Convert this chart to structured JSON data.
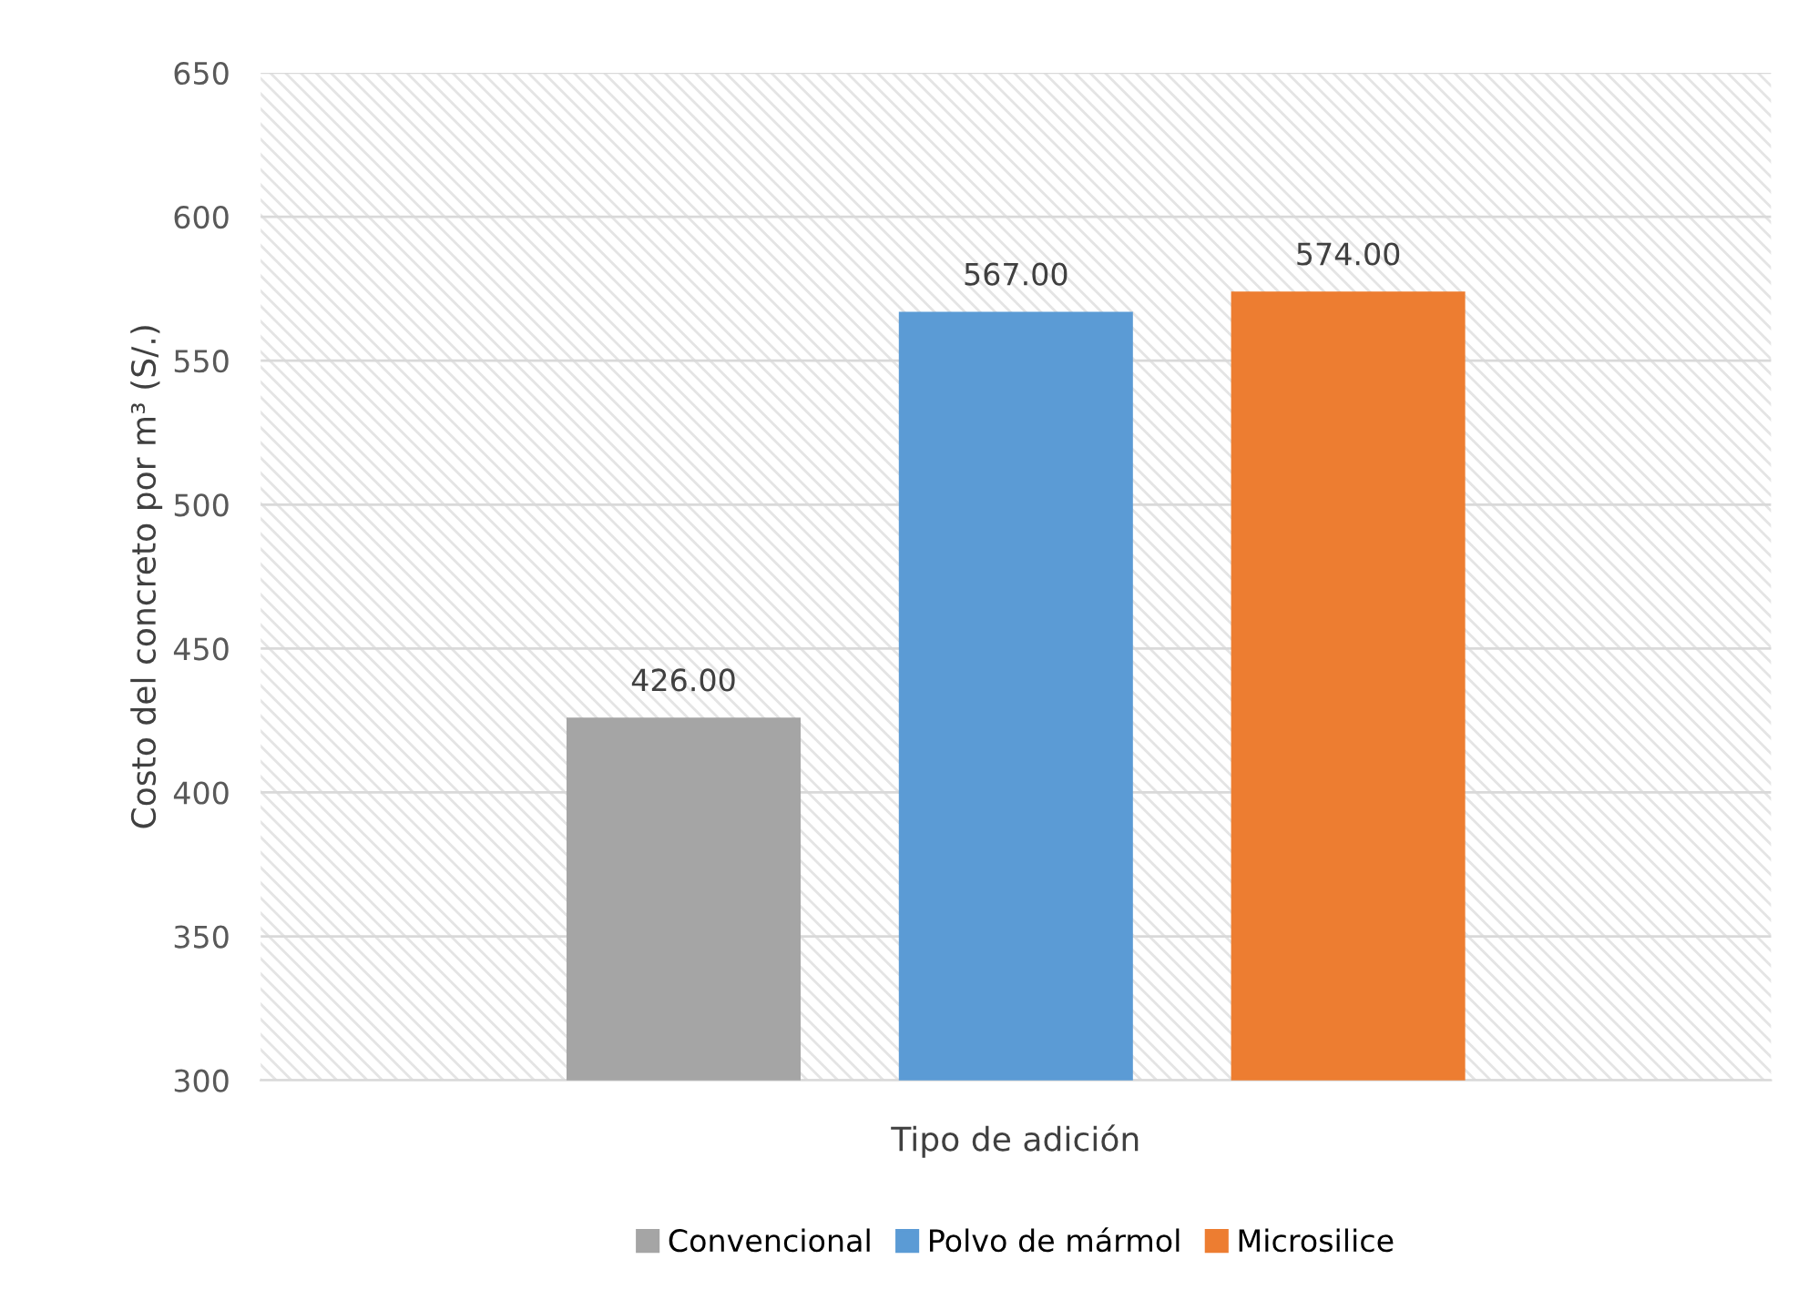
{
  "chart_data": {
    "type": "bar",
    "xlabel": "Tipo de adición",
    "ylabel": "Costo del concreto por m³ (S/.)",
    "categories": [
      null
    ],
    "series": [
      {
        "name": "Convencional",
        "color": "#a5a5a5",
        "values": [
          426
        ],
        "value_labels": [
          "426.00"
        ]
      },
      {
        "name": "Polvo de mármol",
        "color": "#5b9bd5",
        "values": [
          567
        ],
        "value_labels": [
          "567.00"
        ]
      },
      {
        "name": "Microsilice",
        "color": "#ed7d31",
        "values": [
          574
        ],
        "value_labels": [
          "574.00"
        ]
      }
    ],
    "ylim": [
      300,
      650
    ],
    "yticks": [
      300,
      350,
      400,
      450,
      500,
      550,
      600,
      650
    ],
    "grid": "y",
    "legend": "bottom"
  }
}
